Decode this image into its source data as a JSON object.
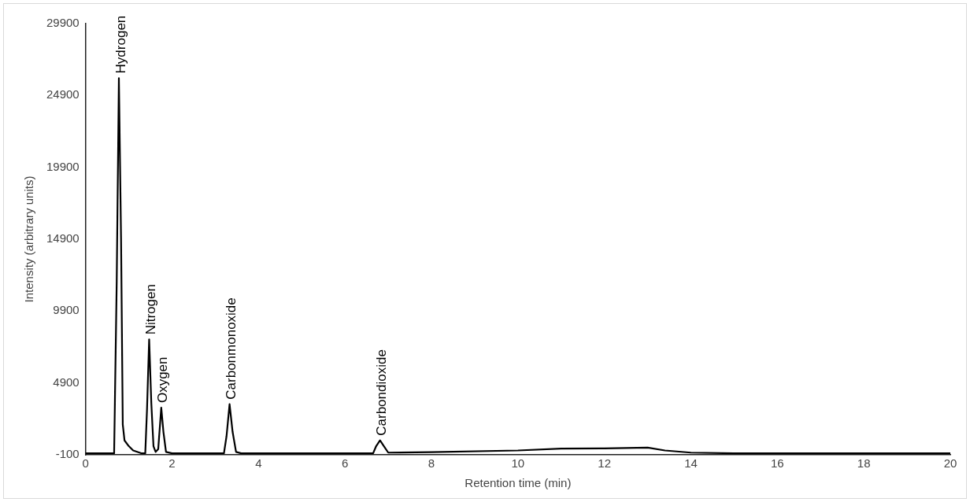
{
  "chart_data": {
    "type": "line",
    "xlabel": "Retention time (min)",
    "ylabel": "Intensity (arbitrary units)",
    "x": [
      0,
      0.6,
      0.66,
      0.72,
      0.77,
      0.82,
      0.86,
      0.9,
      1.0,
      1.1,
      1.3,
      1.38,
      1.42,
      1.47,
      1.52,
      1.57,
      1.62,
      1.68,
      1.75,
      1.8,
      1.86,
      2,
      3.2,
      3.26,
      3.33,
      3.4,
      3.48,
      3.6,
      6.65,
      6.72,
      6.81,
      6.9,
      7.0,
      8,
      10,
      11,
      12,
      13,
      13.4,
      14,
      15,
      20
    ],
    "series": [
      {
        "color": "#000000",
        "values": [
          0,
          0,
          0,
          12000,
          26100,
          15000,
          2000,
          900,
          500,
          200,
          0,
          0,
          3000,
          7930,
          3500,
          500,
          100,
          300,
          3180,
          1500,
          100,
          0,
          0,
          1200,
          3420,
          1500,
          100,
          0,
          0,
          500,
          900,
          500,
          50,
          80,
          200,
          330,
          350,
          400,
          200,
          50,
          0,
          0
        ]
      }
    ],
    "xlim": [
      0,
      20
    ],
    "xticks": [
      0,
      2,
      4,
      6,
      8,
      10,
      12,
      14,
      16,
      18,
      20
    ],
    "ylim": [
      -100,
      29900
    ],
    "yticks": [
      -100,
      4900,
      9900,
      14900,
      19900,
      24900,
      29900
    ],
    "grid": false,
    "legend": false,
    "marker": "none",
    "line_style": "solid",
    "annotations": [
      {
        "text": "Hydrogen",
        "x": 0.77,
        "y": 26100
      },
      {
        "text": "Nitrogen",
        "x": 1.47,
        "y": 7930
      },
      {
        "text": "Oxygen",
        "x": 1.75,
        "y": 3180
      },
      {
        "text": "Carbonmonoxide",
        "x": 3.33,
        "y": 3420
      },
      {
        "text": "Carbondioxide",
        "x": 6.81,
        "y": 900
      }
    ]
  }
}
